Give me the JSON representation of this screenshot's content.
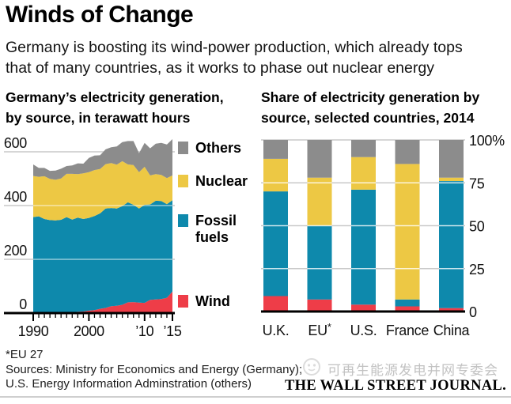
{
  "header": {
    "title": "Winds of Change",
    "subtitle_line1": "Germany is boosting its wind-power production, which already tops",
    "subtitle_line2": "that of many countries, as it works to phase out nuclear energy"
  },
  "left_chart": {
    "heading_line1": "Germany’s electricity generation,",
    "heading_line2": "by source, in terawatt hours",
    "legend": {
      "others": "Others",
      "nuclear": "Nuclear",
      "fossil": "Fossil fuels",
      "wind": "Wind"
    }
  },
  "right_chart": {
    "heading_line1": "Share of electricity generation by",
    "heading_line2": "source, selected countries, 2014"
  },
  "colors": {
    "wind": "#ee3d48",
    "fossil_fuels": "#0e89ac",
    "nuclear": "#edc844",
    "others": "#8c8c8c",
    "gridline": "#c9c9c9",
    "axis": "#000000",
    "text": "#111111"
  },
  "chart_data": [
    {
      "id": "germany-generation-area",
      "type": "area",
      "stacked": true,
      "title": "Germany’s electricity generation, by source, in terawatt hours",
      "x": [
        1990,
        1991,
        1992,
        1993,
        1994,
        1995,
        1996,
        1997,
        1998,
        1999,
        2000,
        2001,
        2002,
        2003,
        2004,
        2005,
        2006,
        2007,
        2008,
        2009,
        2010,
        2011,
        2012,
        2013,
        2014,
        2015
      ],
      "series": [
        {
          "name": "Wind",
          "color_key": "wind",
          "values": [
            0,
            0,
            0,
            1,
            1,
            2,
            2,
            3,
            5,
            6,
            9,
            11,
            16,
            19,
            26,
            27,
            31,
            40,
            41,
            39,
            38,
            49,
            51,
            52,
            57,
            80
          ]
        },
        {
          "name": "Fossil fuels",
          "color_key": "fossil_fuels",
          "values": [
            357,
            360,
            350,
            345,
            344,
            345,
            355,
            345,
            350,
            344,
            345,
            350,
            355,
            370,
            365,
            362,
            367,
            372,
            362,
            350,
            365,
            355,
            367,
            365,
            348,
            340
          ]
        },
        {
          "name": "Nuclear",
          "color_key": "nuclear",
          "values": [
            153,
            147,
            159,
            153,
            151,
            154,
            161,
            170,
            162,
            170,
            170,
            171,
            165,
            165,
            167,
            163,
            167,
            141,
            148,
            135,
            141,
            108,
            99,
            97,
            97,
            92
          ]
        },
        {
          "name": "Others",
          "color_key": "others",
          "values": [
            43,
            33,
            31,
            30,
            34,
            36,
            29,
            31,
            40,
            36,
            53,
            54,
            51,
            55,
            59,
            68,
            71,
            87,
            89,
            71,
            89,
            101,
            113,
            119,
            125,
            135
          ]
        }
      ],
      "ylim": [
        0,
        600
      ],
      "yticks": [
        0,
        200,
        400,
        600
      ],
      "xticks": [
        {
          "x": 1990,
          "label": "1990"
        },
        {
          "x": 2000,
          "label": "2000"
        },
        {
          "x": 2010,
          "label": "’10"
        },
        {
          "x": 2015,
          "label": "’15"
        }
      ],
      "legend_position": "right",
      "grid": true
    },
    {
      "id": "share-by-country-bars",
      "type": "bar",
      "stacked": true,
      "title": "Share of electricity generation by source, selected countries, 2014",
      "categories": [
        "U.K.",
        "EU*",
        "U.S.",
        "France",
        "China"
      ],
      "series": [
        {
          "name": "Wind",
          "color_key": "wind",
          "values": [
            9,
            7,
            4,
            3,
            2
          ]
        },
        {
          "name": "Fossil fuels",
          "color_key": "fossil_fuels",
          "values": [
            61,
            43,
            67,
            4,
            74
          ]
        },
        {
          "name": "Nuclear",
          "color_key": "nuclear",
          "values": [
            19,
            28,
            19,
            79,
            2
          ]
        },
        {
          "name": "Others",
          "color_key": "others",
          "values": [
            11,
            22,
            10,
            14,
            22
          ]
        }
      ],
      "unit": "%",
      "ylim": [
        0,
        100
      ],
      "yticks": [
        0,
        25,
        50,
        75,
        100
      ],
      "ytick_labels": [
        "0",
        "25",
        "50",
        "75",
        "100%"
      ],
      "grid": true
    }
  ],
  "footnotes": {
    "asterisk_note": "*EU 27",
    "sources_line1": "Sources: Ministry for Economics and Energy (Germany);",
    "sources_line2": "U.S. Energy Information Adminstration (others)"
  },
  "branding": {
    "wechat_account": "可再生能源发电并网专委会",
    "wsj_wordmark": "THE WALL STREET JOURNAL."
  }
}
